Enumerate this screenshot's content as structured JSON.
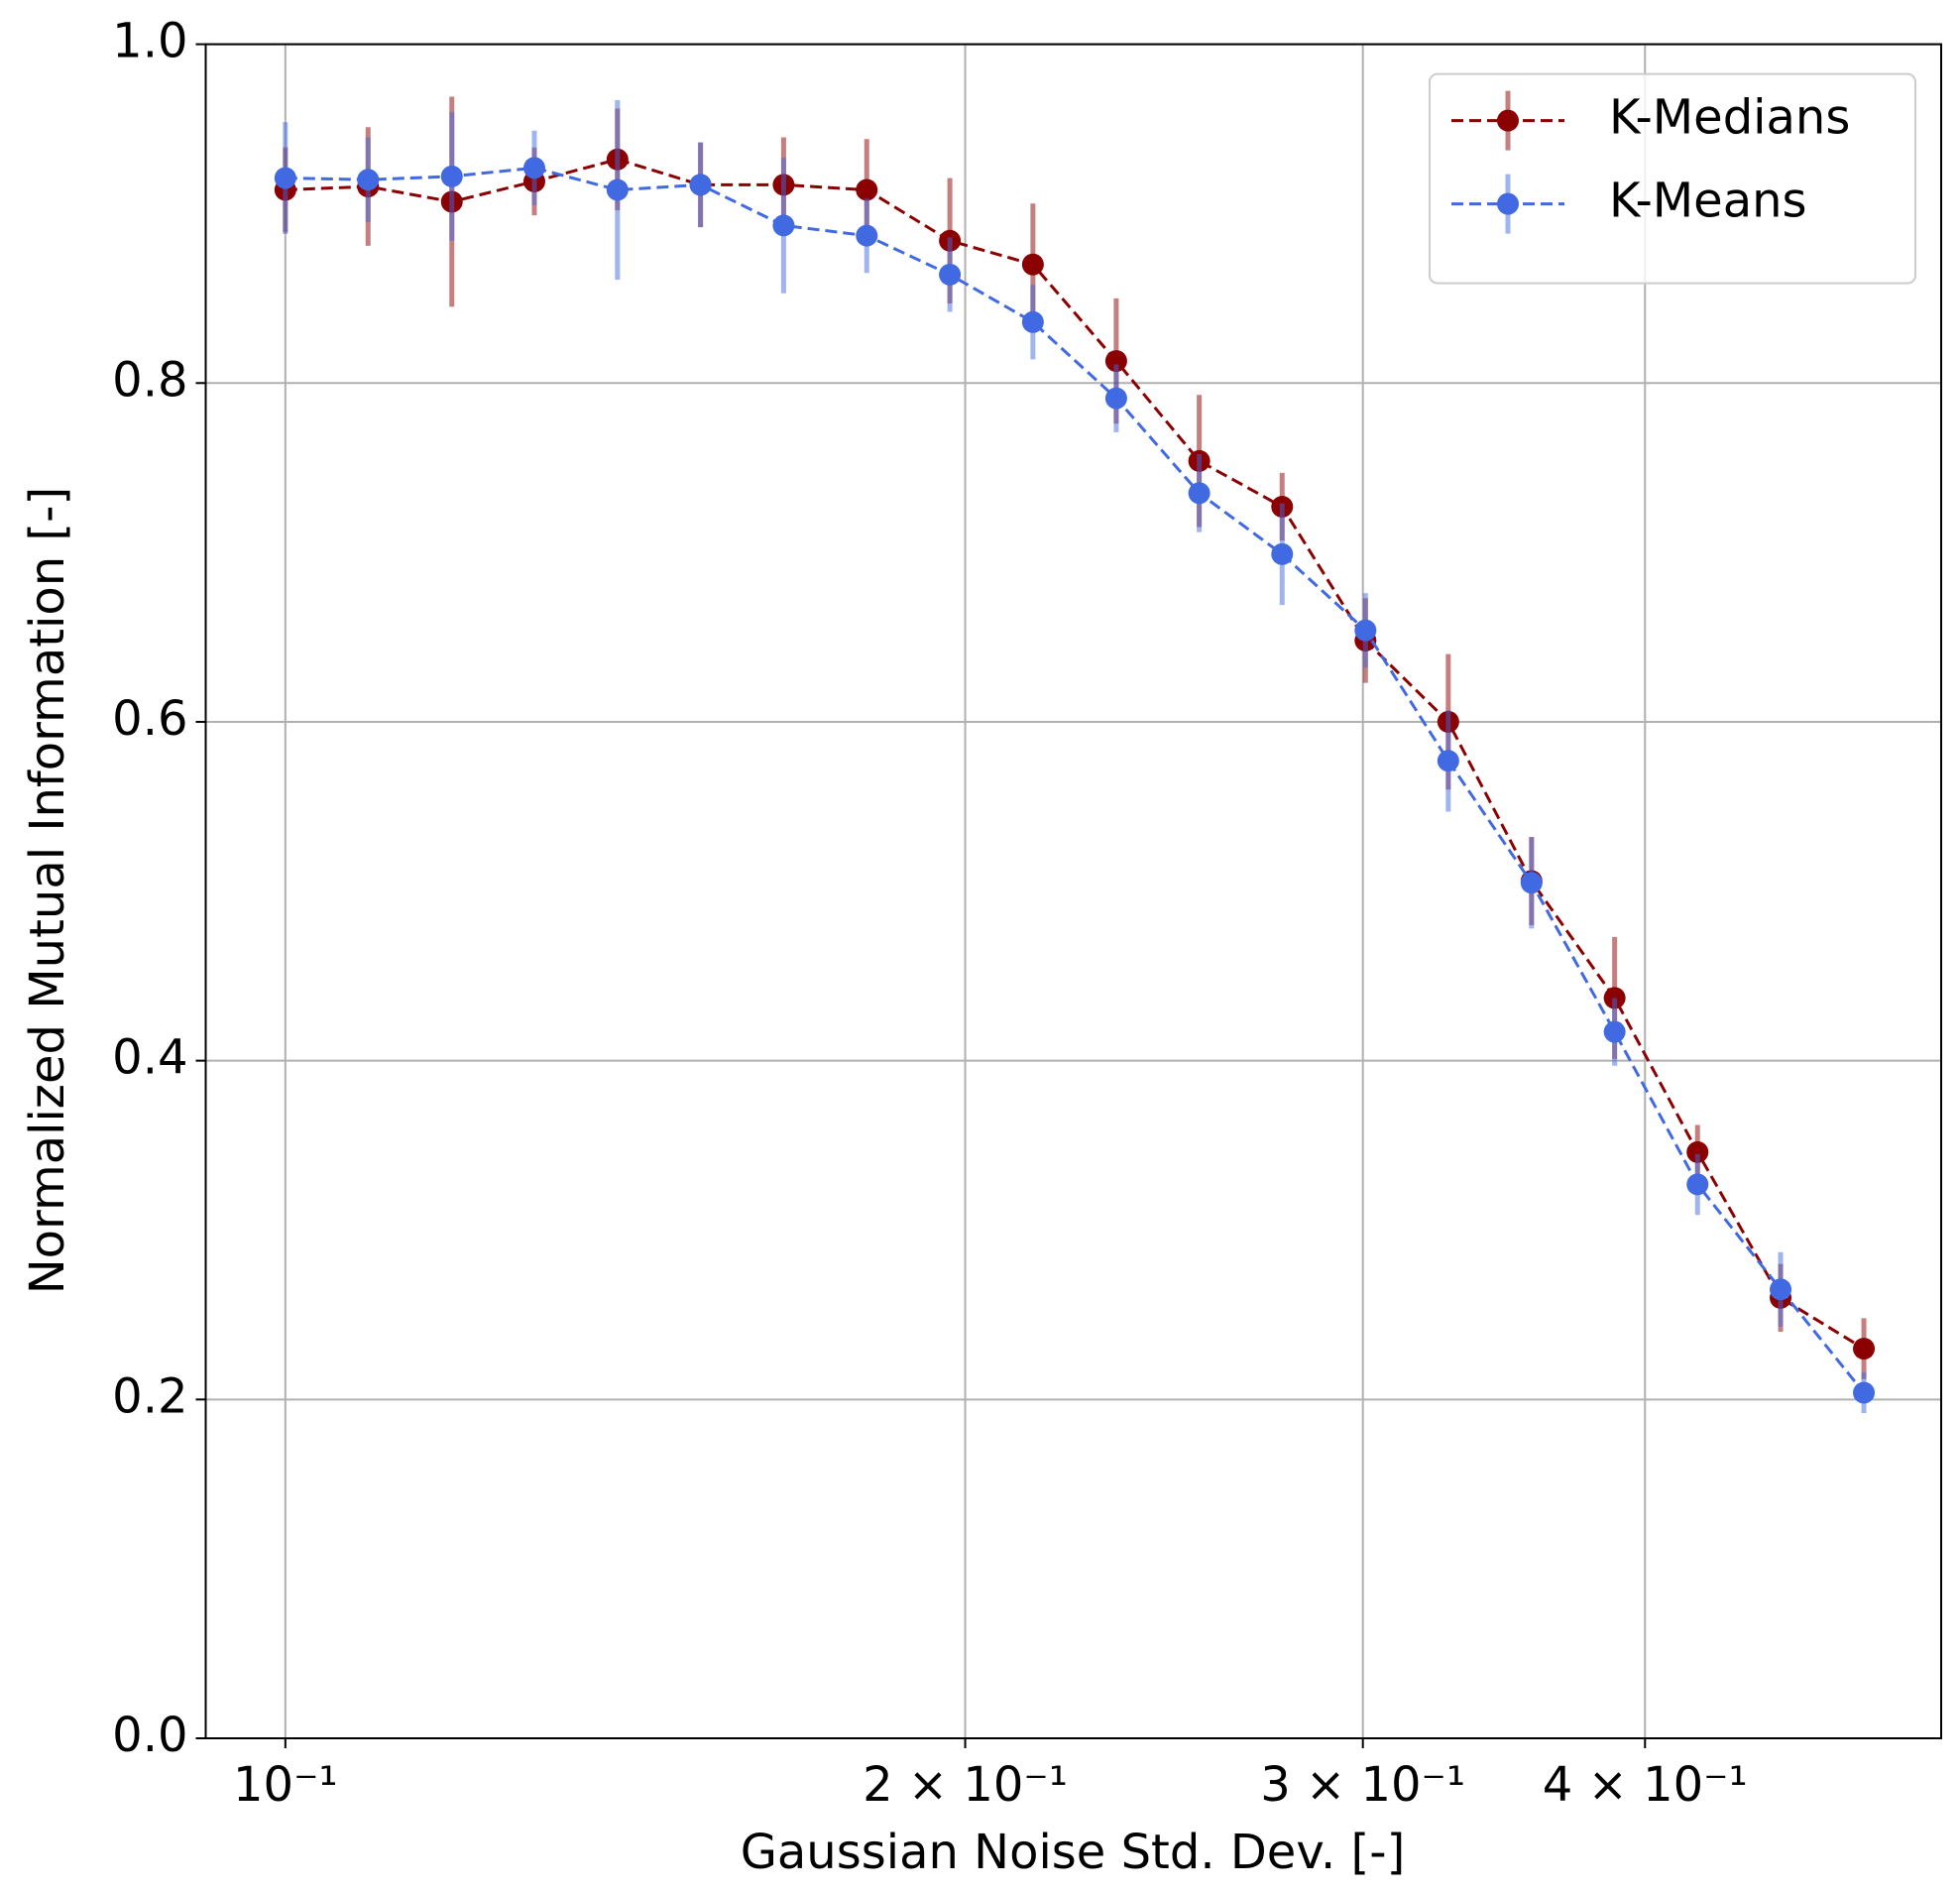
{
  "chart_data": {
    "type": "errorbar_line",
    "x_label": "Gaussian Noise Std. Dev. [-]",
    "y_label": "Normalized Mutual Information [-]",
    "x_log": true,
    "grid": true,
    "legend": "upper right",
    "x": [
      0.1,
      0.1088,
      0.1185,
      0.1289,
      0.1403,
      0.1527,
      0.1662,
      0.1809,
      0.1969,
      0.2143,
      0.2333,
      0.2539,
      0.2763,
      0.3008,
      0.3273,
      0.3563,
      0.3878,
      0.422,
      0.4593,
      0.5
    ],
    "series": [
      {
        "name": "K-Medians",
        "color": "#8b0000",
        "values": [
          0.914,
          0.916,
          0.907,
          0.919,
          0.932,
          0.917,
          0.917,
          0.914,
          0.884,
          0.87,
          0.813,
          0.754,
          0.727,
          0.648,
          0.6,
          0.506,
          0.437,
          0.346,
          0.26,
          0.23
        ],
        "errors": [
          0.025,
          0.035,
          0.062,
          0.02,
          0.03,
          0.025,
          0.028,
          0.03,
          0.037,
          0.036,
          0.037,
          0.039,
          0.02,
          0.025,
          0.04,
          0.026,
          0.036,
          0.016,
          0.02,
          0.018
        ]
      },
      {
        "name": "K-Means",
        "color": "#4169e1",
        "values": [
          0.921,
          0.92,
          0.922,
          0.927,
          0.914,
          0.917,
          0.893,
          0.887,
          0.864,
          0.836,
          0.791,
          0.735,
          0.699,
          0.654,
          0.577,
          0.505,
          0.417,
          0.327,
          0.265,
          0.204
        ],
        "errors": [
          0.033,
          0.025,
          0.038,
          0.022,
          0.053,
          0.025,
          0.04,
          0.022,
          0.022,
          0.022,
          0.02,
          0.023,
          0.03,
          0.022,
          0.03,
          0.027,
          0.02,
          0.018,
          0.022,
          0.012
        ]
      }
    ],
    "xlim": [
      0.0922,
      0.541
    ],
    "xticks": [
      {
        "value": 0.1,
        "label": "10⁻¹"
      },
      {
        "value": 0.2,
        "label": "2 × 10⁻¹"
      },
      {
        "value": 0.3,
        "label": "3 × 10⁻¹"
      },
      {
        "value": 0.4,
        "label": "4 × 10⁻¹"
      }
    ],
    "ylim": [
      0,
      1
    ],
    "yticks": [
      {
        "value": 0,
        "label": "0.0"
      },
      0.2,
      0.4,
      0.6,
      0.8,
      {
        "value": 1,
        "label": "1.0"
      }
    ]
  }
}
